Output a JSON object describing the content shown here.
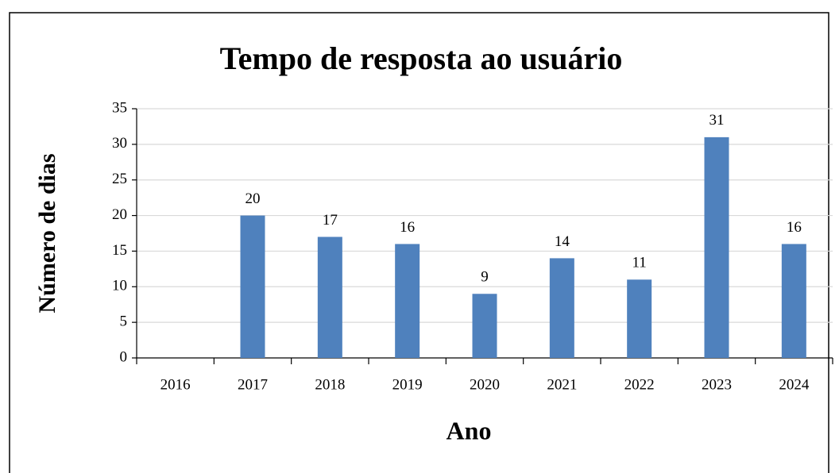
{
  "chart_data": {
    "type": "bar",
    "title": "Tempo de resposta ao usuário",
    "x_label": "Ano",
    "y_label": "Número de dias",
    "categories": [
      "2016",
      "2017",
      "2018",
      "2019",
      "2020",
      "2021",
      "2022",
      "2023",
      "2024"
    ],
    "values": [
      null,
      20,
      17,
      16,
      9,
      14,
      11,
      31,
      16
    ],
    "color": "#4f81bd",
    "ylim": [
      0,
      35
    ],
    "yticks": [
      0,
      5,
      10,
      15,
      20,
      25,
      30,
      35
    ],
    "grid": true
  }
}
